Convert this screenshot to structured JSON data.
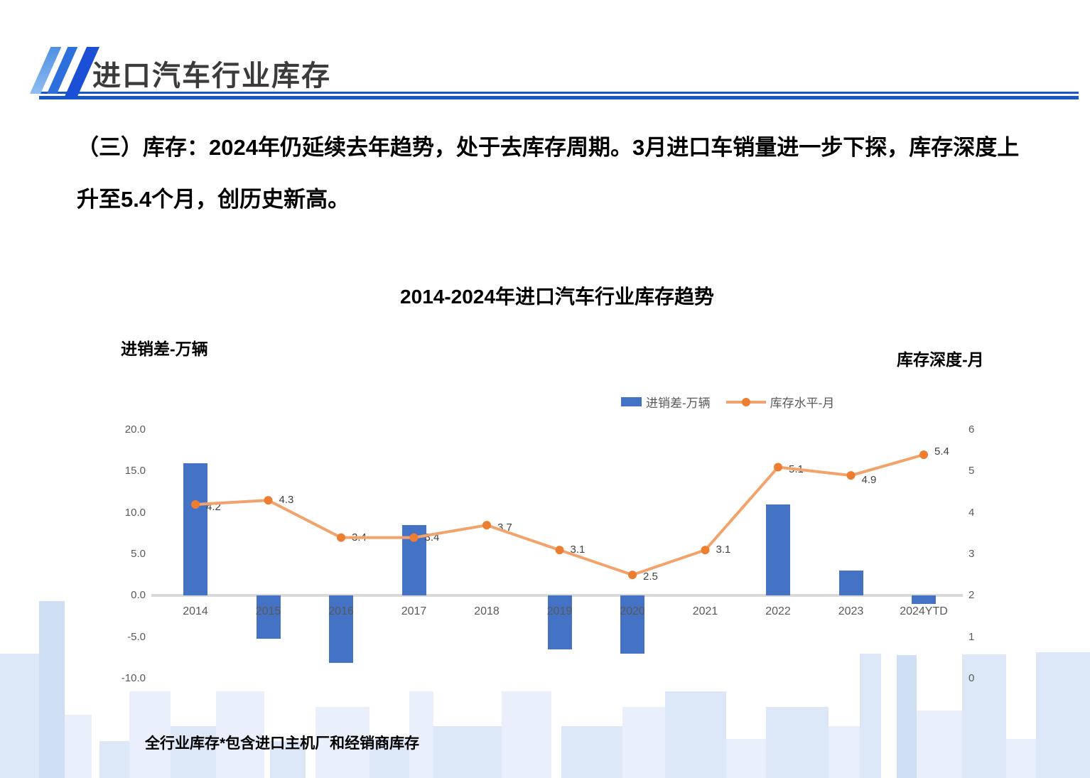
{
  "header": {
    "title": "进口汽车行业库存"
  },
  "headline": {
    "line1": "（三）库存：2024年仍延续去年趋势，处于去库存周期。3月进口车销量进一步下探，库存深度上",
    "line2": "升至5.4个月，创历史新高。"
  },
  "footnote": "全行业库存*包含进口主机厂和经销商库存",
  "chart_data": {
    "type": "bar+line",
    "title": "2014-2024年进口汽车行业库存趋势",
    "left_axis_title": "进销差-万辆",
    "right_axis_title": "库存深度-月",
    "legend": [
      {
        "label": "进销差-万辆",
        "marker": "bar-swatch",
        "color": "#4472C4"
      },
      {
        "label": "库存水平-月",
        "marker": "line-with-dot",
        "color": "#ED7D31"
      }
    ],
    "legend_position": "top-inside-right",
    "grid": false,
    "categories": [
      "2014",
      "2015",
      "2016",
      "2017",
      "2018",
      "2019",
      "2020",
      "2021",
      "2022",
      "2023",
      "2024YTD"
    ],
    "series": [
      {
        "name": "进销差-万辆",
        "type": "bar",
        "axis": "left",
        "color": "#4472C4",
        "values": [
          16.0,
          -5.2,
          -8.1,
          8.5,
          0.0,
          -6.5,
          -7.0,
          0.0,
          11.0,
          3.0,
          -1.0
        ]
      },
      {
        "name": "库存水平-月",
        "type": "line",
        "axis": "right",
        "line_color": "#F2A36B",
        "marker_color": "#ED7D31",
        "values": [
          4.2,
          4.3,
          3.4,
          3.4,
          3.7,
          3.1,
          2.5,
          3.1,
          5.1,
          4.9,
          5.4
        ],
        "labels": [
          "4.2",
          "4.3",
          "3.4",
          "3.4",
          "3.7",
          "3.1",
          "2.5",
          "3.1",
          "5.1",
          "4.9",
          "5.4"
        ]
      }
    ],
    "left_axis": {
      "min": -10,
      "max": 20,
      "ticks": [
        "20.0",
        "15.0",
        "10.0",
        "5.0",
        "0.0",
        "-5.0",
        "-10.0"
      ]
    },
    "right_axis": {
      "min": 0,
      "max": 6,
      "ticks": [
        "6",
        "5",
        "4",
        "3",
        "2",
        "1",
        "0"
      ]
    },
    "baseline_color": "#D9D9D9",
    "tick_color": "#595959"
  }
}
